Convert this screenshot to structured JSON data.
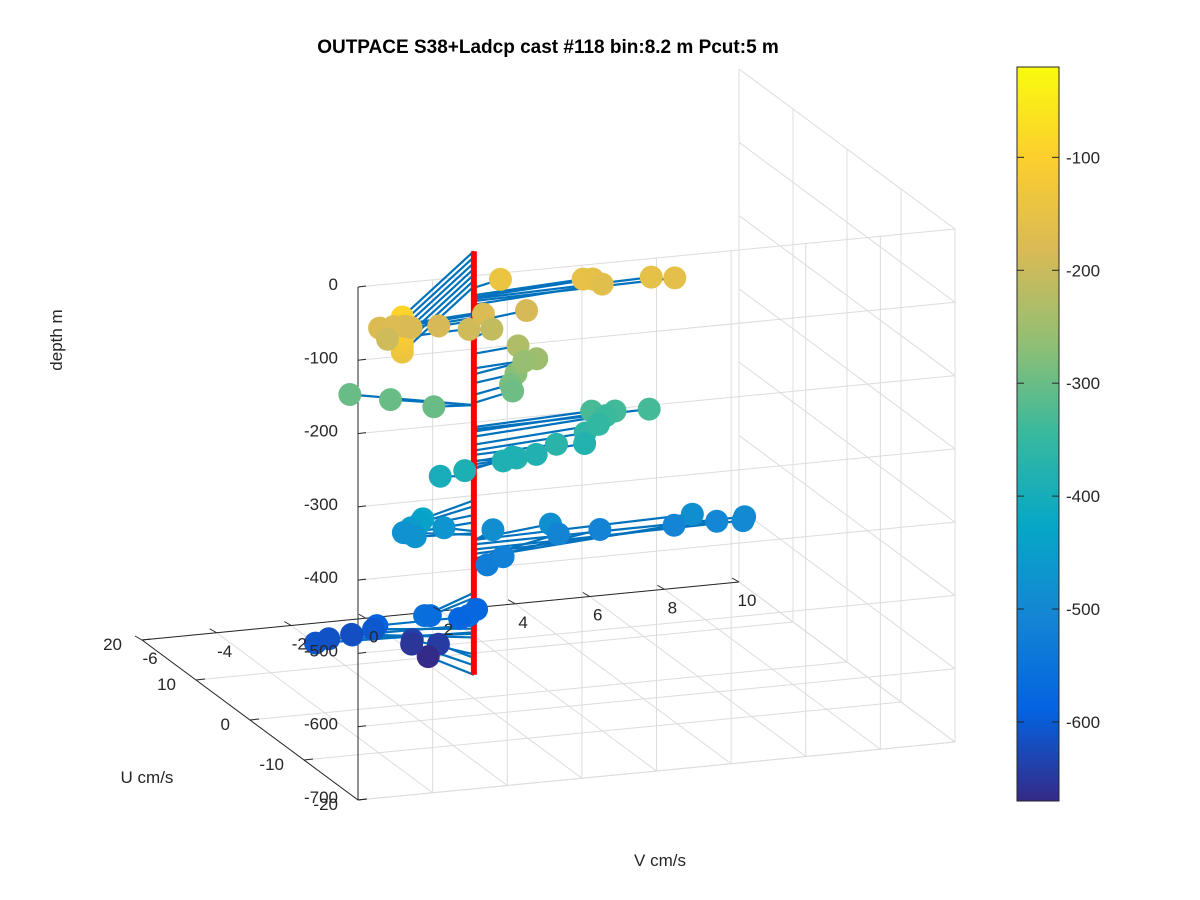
{
  "chart_data": {
    "type": "scatter",
    "title": "OUTPACE S38+Ladcp cast #118 bin:8.2 m  Pcut:5 m",
    "xlabel": "V cm/s",
    "ylabel": "U cm/s",
    "zlabel": "depth m",
    "xlim": [
      -6,
      10
    ],
    "ylim": [
      -20,
      20
    ],
    "zlim": [
      -700,
      0
    ],
    "xticks": [
      "-6",
      "-4",
      "-2",
      "0",
      "2",
      "4",
      "6",
      "8",
      "10"
    ],
    "yticks": [
      "-20",
      "-10",
      "0",
      "10",
      "20"
    ],
    "zticks": [
      "0",
      "-100",
      "-200",
      "-300",
      "-400",
      "-500",
      "-600",
      "-700"
    ],
    "grid": "on",
    "colorbar": {
      "position": "right",
      "ticks": [
        "-100",
        "-200",
        "-300",
        "-400",
        "-500",
        "-600"
      ],
      "range": [
        -670,
        -20
      ]
    },
    "stem_color": "#0072bd",
    "axis_line_color": "#ff0000",
    "points": [
      {
        "v": -3.8,
        "u": -13.0,
        "z": -90
      },
      {
        "v": -3.8,
        "u": -13.0,
        "z": -98
      },
      {
        "v": -3.8,
        "u": -13.0,
        "z": -106
      },
      {
        "v": -3.8,
        "u": -13.0,
        "z": -114
      },
      {
        "v": -3.8,
        "u": -13.0,
        "z": -122
      },
      {
        "v": -3.8,
        "u": -13.0,
        "z": -130
      },
      {
        "v": -3.8,
        "u": -13.0,
        "z": -138
      },
      {
        "v": 0.9,
        "u": 1.3,
        "z": -140
      },
      {
        "v": 3.1,
        "u": 1.2,
        "z": -150
      },
      {
        "v": 3.4,
        "u": 1.5,
        "z": -153
      },
      {
        "v": 4.9,
        "u": 1.0,
        "z": -155
      },
      {
        "v": 5.5,
        "u": 0.8,
        "z": -158
      },
      {
        "v": 3.7,
        "u": 1.8,
        "z": -163
      },
      {
        "v": -2.7,
        "u": -1.2,
        "z": -175
      },
      {
        "v": -2.3,
        "u": -1.0,
        "z": -176
      },
      {
        "v": -2.0,
        "u": -1.0,
        "z": -177
      },
      {
        "v": -1.8,
        "u": -0.8,
        "z": -181
      },
      {
        "v": -1.0,
        "u": -0.4,
        "z": -185
      },
      {
        "v": 0.3,
        "u": 0.3,
        "z": -179
      },
      {
        "v": 1.6,
        "u": 1.3,
        "z": -186
      },
      {
        "v": -2.4,
        "u": -0.6,
        "z": -195
      },
      {
        "v": -0.2,
        "u": -0.5,
        "z": -193
      },
      {
        "v": 0.7,
        "u": 1.5,
        "z": -208
      },
      {
        "v": 1.3,
        "u": 0.8,
        "z": -230
      },
      {
        "v": 1.8,
        "u": 0.8,
        "z": -250
      },
      {
        "v": 1.6,
        "u": 1.8,
        "z": -258
      },
      {
        "v": 1.3,
        "u": 1.2,
        "z": -270
      },
      {
        "v": 1.2,
        "u": 1.5,
        "z": -286
      },
      {
        "v": 1.3,
        "u": 1.8,
        "z": -297
      },
      {
        "v": -2.6,
        "u": 5.0,
        "z": -300
      },
      {
        "v": -1.8,
        "u": 3.0,
        "z": -300
      },
      {
        "v": -1.0,
        "u": 0.5,
        "z": -300
      },
      {
        "v": 3.3,
        "u": 1.0,
        "z": -330
      },
      {
        "v": 4.8,
        "u": 0.7,
        "z": -333
      },
      {
        "v": 4.0,
        "u": 1.5,
        "z": -336
      },
      {
        "v": 3.8,
        "u": 1.8,
        "z": -343
      },
      {
        "v": 3.6,
        "u": 1.8,
        "z": -354
      },
      {
        "v": 3.2,
        "u": 1.5,
        "z": -362
      },
      {
        "v": 2.3,
        "u": 0.6,
        "z": -368
      },
      {
        "v": 1.1,
        "u": -0.3,
        "z": -376
      },
      {
        "v": 3.2,
        "u": 1.6,
        "z": -377
      },
      {
        "v": 1.8,
        "u": 0.9,
        "z": -381
      },
      {
        "v": 1.3,
        "u": 1.8,
        "z": -387
      },
      {
        "v": 0.9,
        "u": 0.8,
        "z": -385
      },
      {
        "v": -0.8,
        "u": 0.7,
        "z": -397
      },
      {
        "v": -0.2,
        "u": 0.3,
        "z": -390
      },
      {
        "v": -1.8,
        "u": -3.0,
        "z": -430
      },
      {
        "v": -1.8,
        "u": -2.5,
        "z": -438
      },
      {
        "v": -1.9,
        "u": -1.5,
        "z": -450
      },
      {
        "v": -1.9,
        "u": -1.0,
        "z": -460
      },
      {
        "v": -1.5,
        "u": 0.5,
        "z": -475
      },
      {
        "v": -1.6,
        "u": 2.0,
        "z": -477
      },
      {
        "v": -0.6,
        "u": 1.4,
        "z": -472
      },
      {
        "v": 0.8,
        "u": 2.0,
        "z": -485
      },
      {
        "v": 2.3,
        "u": 1.7,
        "z": -483
      },
      {
        "v": 6.0,
        "u": 1.0,
        "z": -484
      },
      {
        "v": 7.3,
        "u": 0.3,
        "z": -490
      },
      {
        "v": 7.3,
        "u": 0.6,
        "z": -497
      },
      {
        "v": 6.8,
        "u": 2.0,
        "z": -503
      },
      {
        "v": 5.8,
        "u": 3.0,
        "z": -509
      },
      {
        "v": 4.0,
        "u": 4.3,
        "z": -513
      },
      {
        "v": 2.8,
        "u": 3.7,
        "z": -510
      },
      {
        "v": 1.0,
        "u": 1.5,
        "z": -520
      },
      {
        "v": 0.5,
        "u": 1.0,
        "z": -526
      },
      {
        "v": -1.9,
        "u": -4.0,
        "z": -556
      },
      {
        "v": -1.6,
        "u": -3.0,
        "z": -563
      },
      {
        "v": -0.5,
        "u": -2.5,
        "z": -571
      },
      {
        "v": -0.6,
        "u": -1.5,
        "z": -580
      },
      {
        "v": 0.0,
        "u": -0.5,
        "z": -576
      },
      {
        "v": -2.6,
        "u": 0.0,
        "z": -588
      },
      {
        "v": -3.2,
        "u": 0.4,
        "z": -600
      },
      {
        "v": -4.1,
        "u": 1.0,
        "z": -610
      },
      {
        "v": -3.6,
        "u": 2.0,
        "z": -612
      },
      {
        "v": -2.4,
        "u": 2.0,
        "z": -605
      },
      {
        "v": -2.8,
        "u": 3.3,
        "z": -617
      },
      {
        "v": -1.0,
        "u": 4.5,
        "z": -640
      },
      {
        "v": -0.8,
        "u": 6.0,
        "z": -655
      },
      {
        "v": -0.4,
        "u": 3.8,
        "z": -645
      },
      {
        "v": -0.5,
        "u": 5.0,
        "z": -668
      }
    ]
  }
}
